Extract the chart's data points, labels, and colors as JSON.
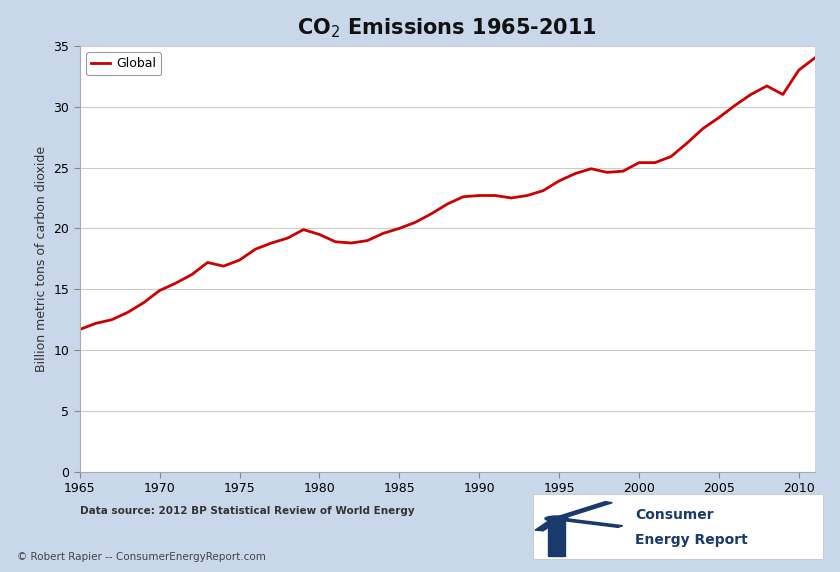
{
  "title": "CO$_2$ Emissions 1965-2011",
  "ylabel": "Billion metric tons of carbon dioxide",
  "source_text": "Data source: 2012 BP Statistical Review of World Energy",
  "copyright_text": "© Robert Rapier -- ConsumerEnergyReport.com",
  "legend_label": "Global",
  "line_color": "#cc0000",
  "background_color": "#c8d8ea",
  "plot_bg_color": "#ffffff",
  "xlim": [
    1965,
    2011
  ],
  "ylim": [
    0,
    35
  ],
  "yticks": [
    0,
    5,
    10,
    15,
    20,
    25,
    30,
    35
  ],
  "xticks": [
    1965,
    1970,
    1975,
    1980,
    1985,
    1990,
    1995,
    2000,
    2005,
    2010
  ],
  "years": [
    1965,
    1966,
    1967,
    1968,
    1969,
    1970,
    1971,
    1972,
    1973,
    1974,
    1975,
    1976,
    1977,
    1978,
    1979,
    1980,
    1981,
    1982,
    1983,
    1984,
    1985,
    1986,
    1987,
    1988,
    1989,
    1990,
    1991,
    1992,
    1993,
    1994,
    1995,
    1996,
    1997,
    1998,
    1999,
    2000,
    2001,
    2002,
    2003,
    2004,
    2005,
    2006,
    2007,
    2008,
    2009,
    2010,
    2011
  ],
  "values": [
    11.7,
    12.2,
    12.5,
    13.1,
    13.9,
    14.9,
    15.5,
    16.2,
    17.2,
    16.9,
    17.4,
    18.3,
    18.8,
    19.2,
    19.9,
    19.5,
    18.9,
    18.8,
    19.0,
    19.6,
    20.0,
    20.5,
    21.2,
    22.0,
    22.6,
    22.7,
    22.7,
    22.5,
    22.7,
    23.1,
    23.9,
    24.5,
    24.9,
    24.6,
    24.7,
    25.4,
    25.4,
    25.9,
    27.0,
    28.2,
    29.1,
    30.1,
    31.0,
    31.7,
    31.0,
    33.0,
    34.0
  ],
  "logo_color": "#1a3a6b",
  "logo_bg": "#ffffff",
  "title_fontsize": 15,
  "axis_fontsize": 9,
  "ylabel_fontsize": 9
}
